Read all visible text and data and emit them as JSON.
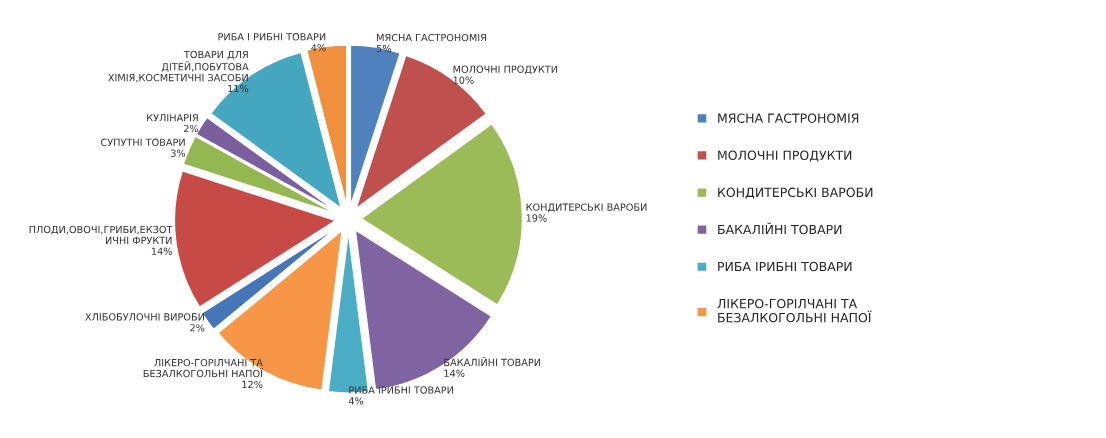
{
  "chart_data": {
    "type": "pie",
    "categories": [
      "МЯСНА ГАСТРОНОМІЯ",
      "МОЛОЧНІ ПРОДУКТИ",
      "КОНДИТЕРСЬКІ ВАРОБИ",
      "БАКАЛІЙНІ ТОВАРИ",
      "РИБА ІРИБНІ ТОВАРИ",
      "ЛІКЕРО-ГОРІЛЧАНІ ТА\nБЕЗАЛКОГОЛЬНІ НАПОЇ",
      "ХЛІБОБУЛОЧНІ ВИРОБИ",
      "ПЛОДИ,ОВОЧІ,ГРИБИ,ЕКЗОТ\nИЧНІ ФРУКТИ",
      "СУПУТНІ ТОВАРИ",
      "КУЛІНАРІЯ",
      "ТОВАРИ ДЛЯ\nДІТЕЙ,ПОБУТОВА\nХІМІЯ,КОСМЕТИЧНІ ЗАСОБИ",
      "РИБА І РИБНІ ТОВАРИ"
    ],
    "values": [
      5,
      10,
      19,
      14,
      4,
      12,
      2,
      14,
      3,
      2,
      11,
      4
    ],
    "value_labels": [
      "5%",
      "10%",
      "19%",
      "14%",
      "4%",
      "12%",
      "2%",
      "14%",
      "3%",
      "2%",
      "11%",
      "4%"
    ],
    "colors": [
      "#4f81bd",
      "#c0504d",
      "#9bbb59",
      "#8064a2",
      "#4bacc6",
      "#f79646",
      "#4577b8",
      "#c84a47",
      "#93b852",
      "#7a5e9e",
      "#45a6c0",
      "#f0903f"
    ],
    "legend": "right"
  }
}
